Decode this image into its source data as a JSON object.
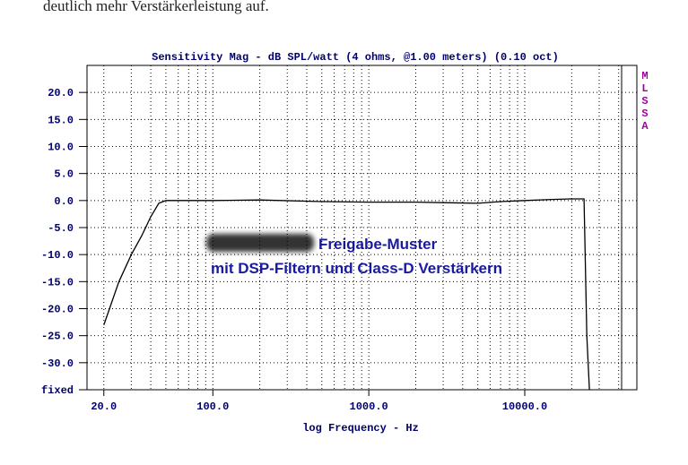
{
  "document_text": "deutlich mehr Verstärkerleistung auf.",
  "chart_data": {
    "type": "line",
    "title": "Sensitivity Mag - dB SPL/watt (4 ohms, @1.00 meters) (0.10 oct)",
    "x_label": "log Frequency - Hz",
    "side_label": [
      "M",
      "L",
      "S",
      "S",
      "A"
    ],
    "annotations": [
      "Freigabe-Muster",
      "mit DSP-Filtern und Class-D Verstärkern"
    ],
    "x": [
      20,
      25,
      30,
      35,
      40,
      45,
      50,
      100,
      200,
      500,
      1000,
      2000,
      5000,
      7000,
      10000,
      15000,
      20000,
      24000,
      25000,
      26000
    ],
    "values": [
      -23,
      -15,
      -10,
      -6.5,
      -3,
      -0.5,
      0,
      0,
      0.1,
      -0.2,
      -0.3,
      -0.3,
      -0.5,
      -0.2,
      0,
      0.2,
      0.3,
      0.3,
      -25,
      -35
    ],
    "color": "#000000",
    "xlog": true,
    "xlim": [
      15.6,
      41800
    ],
    "ylim": [
      -35,
      25
    ],
    "xticks": [
      {
        "value": 20,
        "label": "20.0"
      },
      {
        "value": 100,
        "label": "100.0"
      },
      {
        "value": 1000,
        "label": "1000.0"
      },
      {
        "value": 10000,
        "label": "10000.0"
      }
    ],
    "xgrid": [
      20,
      30,
      40,
      50,
      60,
      70,
      80,
      90,
      100,
      200,
      300,
      400,
      500,
      600,
      700,
      800,
      900,
      1000,
      2000,
      3000,
      4000,
      5000,
      6000,
      7000,
      8000,
      9000,
      10000,
      20000,
      30000,
      40000
    ],
    "yticks": [
      {
        "value": 20,
        "label": "20.0"
      },
      {
        "value": 15,
        "label": "15.0"
      },
      {
        "value": 10,
        "label": "10.0"
      },
      {
        "value": 5,
        "label": "5.0"
      },
      {
        "value": 0,
        "label": "0.0"
      },
      {
        "value": -5,
        "label": "-5.0"
      },
      {
        "value": -10,
        "label": "-10.0"
      },
      {
        "value": -15,
        "label": "-15.0"
      },
      {
        "value": -20,
        "label": "-20.0"
      },
      {
        "value": -25,
        "label": "-25.0"
      },
      {
        "value": -30,
        "label": "-30.0"
      },
      {
        "value": -35,
        "label": "fixed"
      }
    ],
    "grid": true
  }
}
